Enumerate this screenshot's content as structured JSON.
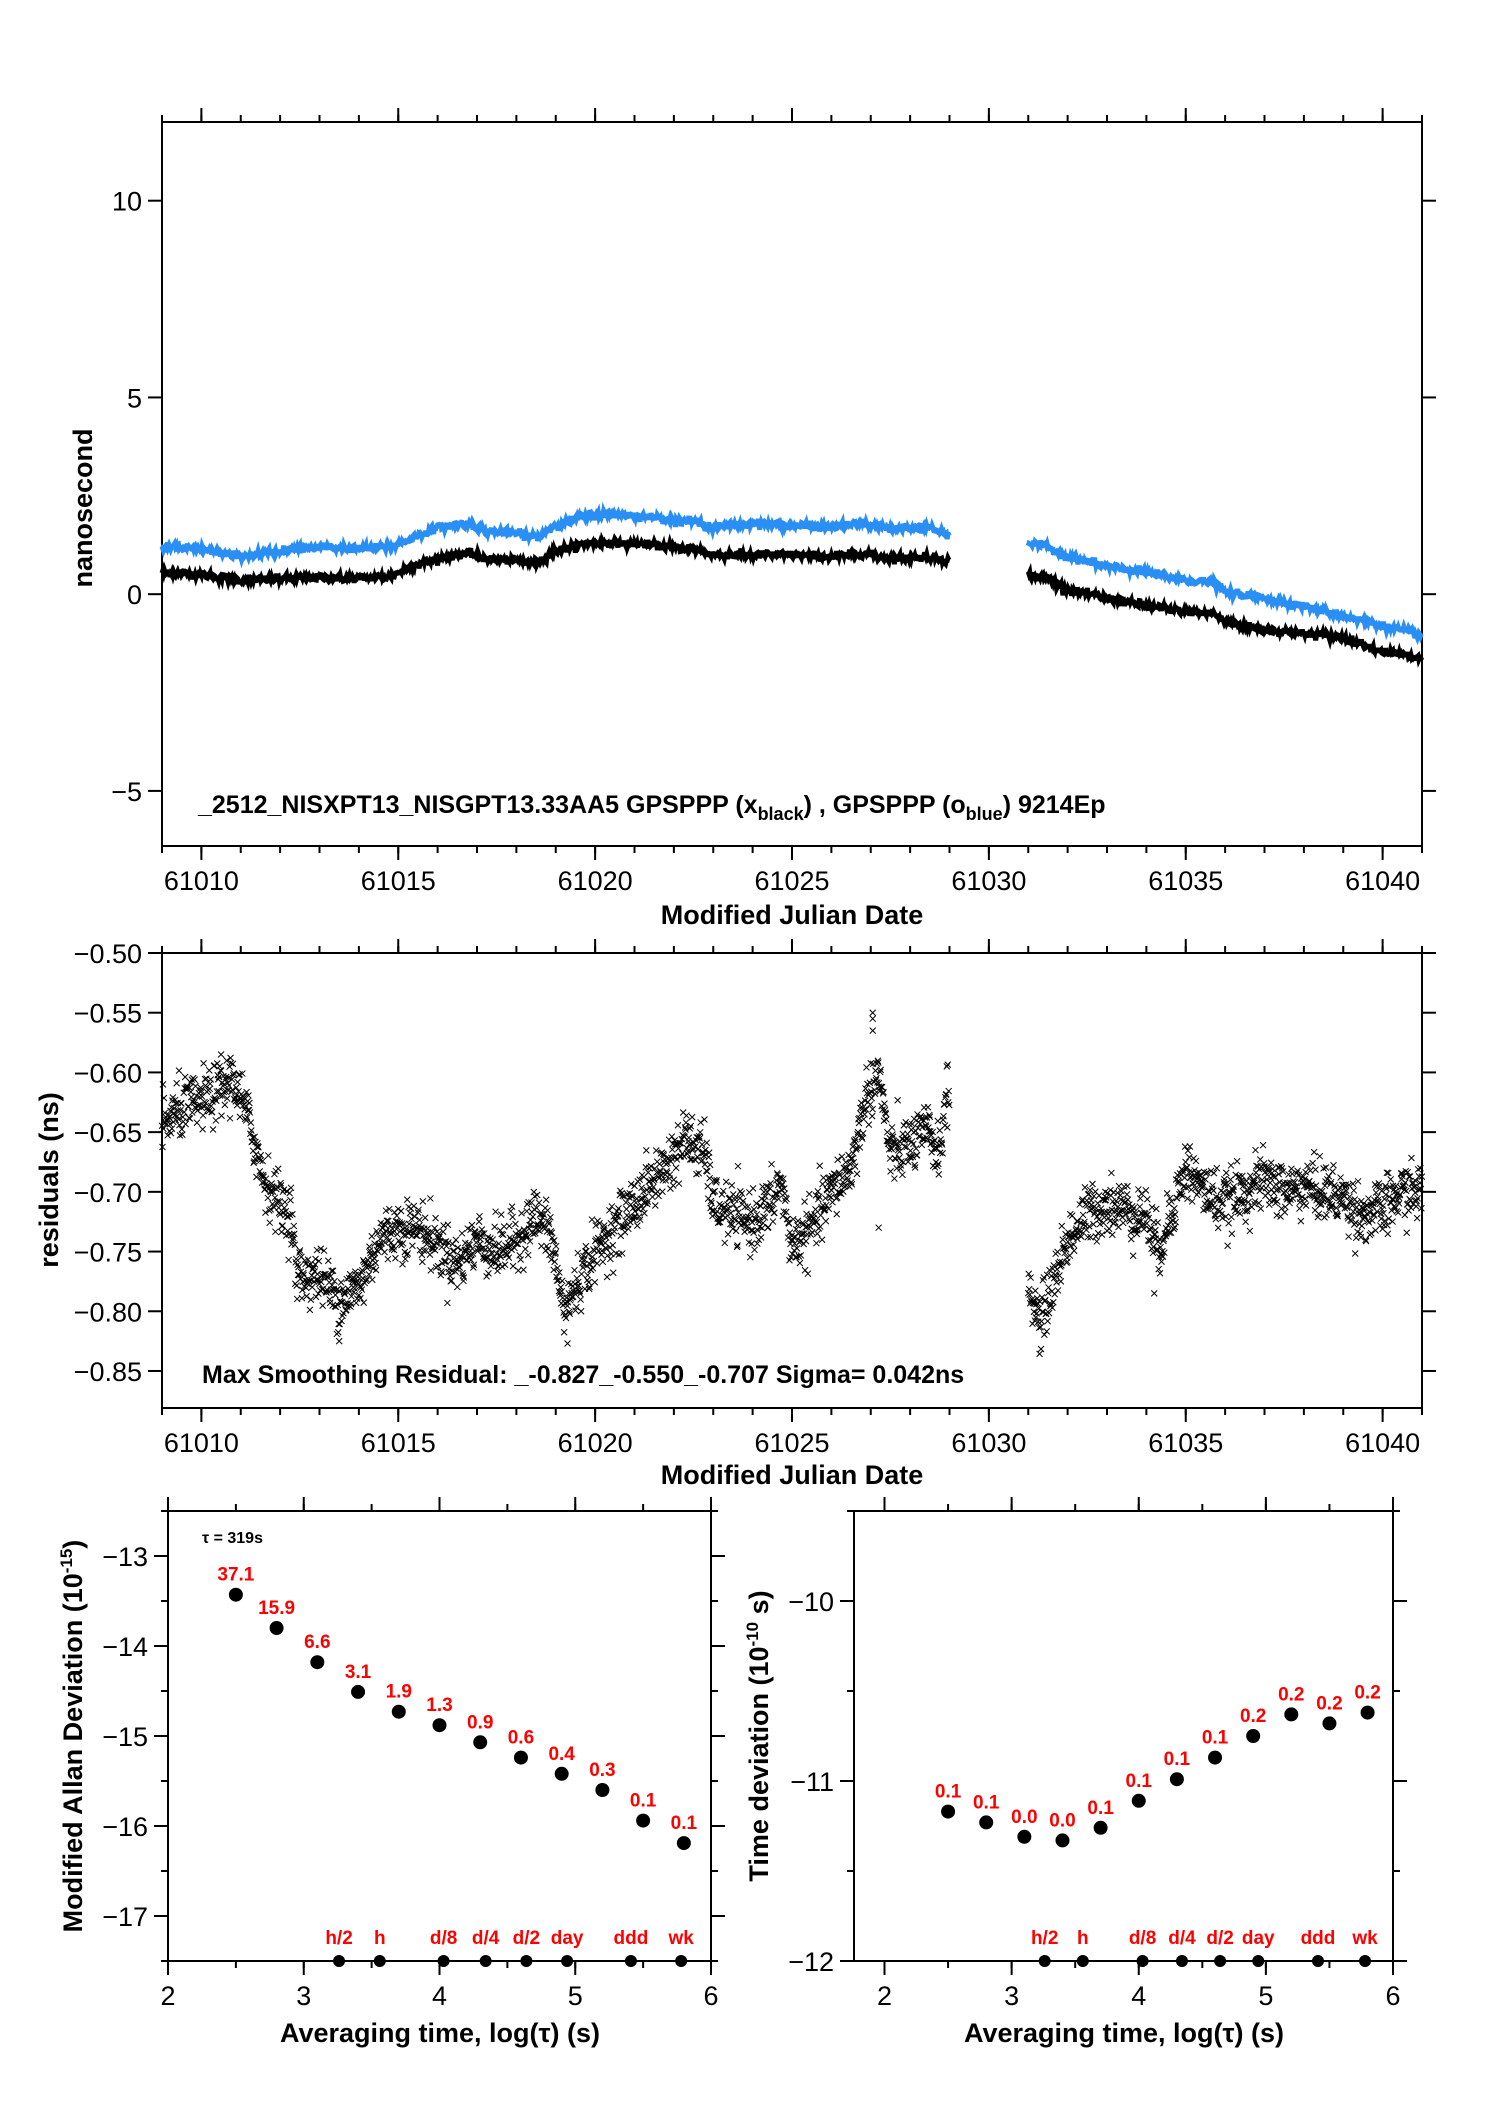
{
  "chart_data": [
    {
      "id": "time-series",
      "type": "line",
      "xlabel": "Modified Julian Date",
      "ylabel": "nanosecond",
      "xlim": [
        61009.0,
        61041.0
      ],
      "ylim": [
        -6.4,
        12.0
      ],
      "xticks": [
        61010,
        61015,
        61020,
        61025,
        61030,
        61035,
        61040
      ],
      "yticks": [
        -5,
        0,
        5,
        10
      ],
      "xtick_labels": [
        "61010",
        "61015",
        "61020",
        "61025",
        "61030",
        "61035",
        "61040"
      ],
      "ytick_labels": [
        "−5",
        "0",
        "5",
        "10"
      ],
      "annotation": {
        "prefix": "_2512_NISXPT13_NISGPT13.33AA5     GPSPPP (x",
        "sub1": "black",
        "mid": ") ,  GPSPPP (o",
        "sub2": "blue",
        "suffix": ")  9214Ep"
      },
      "series": [
        {
          "name": "GPSPPP (x black)",
          "color": "#000000",
          "segments": [
            [
              [
                61009.0,
                0.55
              ],
              [
                61010.0,
                0.5
              ],
              [
                61011.0,
                0.35
              ],
              [
                61012.0,
                0.4
              ],
              [
                61013.0,
                0.42
              ],
              [
                61014.0,
                0.4
              ],
              [
                61014.8,
                0.45
              ],
              [
                61015.3,
                0.7
              ],
              [
                61016.0,
                0.9
              ],
              [
                61016.8,
                1.05
              ],
              [
                61017.2,
                0.9
              ],
              [
                61018.0,
                0.85
              ],
              [
                61018.5,
                0.8
              ],
              [
                61019.0,
                1.1
              ],
              [
                61019.8,
                1.3
              ],
              [
                61020.5,
                1.3
              ],
              [
                61021.5,
                1.25
              ],
              [
                61022.5,
                1.15
              ],
              [
                61023.0,
                1.0
              ],
              [
                61024.0,
                1.0
              ],
              [
                61025.0,
                1.0
              ],
              [
                61026.0,
                0.95
              ],
              [
                61026.8,
                1.05
              ],
              [
                61027.5,
                0.9
              ],
              [
                61028.5,
                0.95
              ],
              [
                61029.0,
                0.85
              ]
            ],
            [
              [
                61031.0,
                0.5
              ],
              [
                61031.5,
                0.4
              ],
              [
                61032.0,
                0.1
              ],
              [
                61033.0,
                -0.1
              ],
              [
                61034.0,
                -0.3
              ],
              [
                61035.0,
                -0.45
              ],
              [
                61035.7,
                -0.5
              ],
              [
                61036.0,
                -0.7
              ],
              [
                61037.0,
                -0.9
              ],
              [
                61038.0,
                -1.0
              ],
              [
                61039.0,
                -1.1
              ],
              [
                61040.0,
                -1.45
              ],
              [
                61041.0,
                -1.65
              ]
            ]
          ]
        },
        {
          "name": "GPSPPP (o blue)",
          "color": "#2a8ff5",
          "segments": [
            [
              [
                61009.0,
                1.2
              ],
              [
                61010.0,
                1.15
              ],
              [
                61011.0,
                0.95
              ],
              [
                61012.0,
                1.1
              ],
              [
                61013.0,
                1.2
              ],
              [
                61014.0,
                1.15
              ],
              [
                61014.8,
                1.2
              ],
              [
                61015.3,
                1.4
              ],
              [
                61016.0,
                1.7
              ],
              [
                61016.8,
                1.8
              ],
              [
                61017.2,
                1.6
              ],
              [
                61018.0,
                1.55
              ],
              [
                61018.5,
                1.45
              ],
              [
                61019.0,
                1.75
              ],
              [
                61019.8,
                2.0
              ],
              [
                61020.5,
                2.05
              ],
              [
                61021.5,
                1.95
              ],
              [
                61022.5,
                1.85
              ],
              [
                61023.0,
                1.7
              ],
              [
                61024.0,
                1.8
              ],
              [
                61025.0,
                1.75
              ],
              [
                61026.0,
                1.7
              ],
              [
                61026.8,
                1.8
              ],
              [
                61027.5,
                1.65
              ],
              [
                61028.5,
                1.7
              ],
              [
                61029.0,
                1.5
              ]
            ],
            [
              [
                61031.0,
                1.3
              ],
              [
                61031.5,
                1.2
              ],
              [
                61032.0,
                0.95
              ],
              [
                61033.0,
                0.7
              ],
              [
                61034.0,
                0.55
              ],
              [
                61035.0,
                0.35
              ],
              [
                61035.7,
                0.3
              ],
              [
                61036.0,
                0.05
              ],
              [
                61037.0,
                -0.1
              ],
              [
                61038.0,
                -0.3
              ],
              [
                61039.0,
                -0.55
              ],
              [
                61040.0,
                -0.8
              ],
              [
                61041.0,
                -1.05
              ]
            ]
          ]
        }
      ]
    },
    {
      "id": "residuals",
      "type": "scatter",
      "xlabel": "Modified Julian Date",
      "ylabel": "residuals (ns)",
      "xlim": [
        61009.0,
        61041.0
      ],
      "ylim": [
        -0.881,
        -0.5
      ],
      "xticks": [
        61010,
        61015,
        61020,
        61025,
        61030,
        61035,
        61040
      ],
      "yticks": [
        -0.85,
        -0.8,
        -0.75,
        -0.7,
        -0.65,
        -0.6,
        -0.55,
        -0.5
      ],
      "xtick_labels": [
        "61010",
        "61015",
        "61020",
        "61025",
        "61030",
        "61035",
        "61040"
      ],
      "ytick_labels": [
        "−0.85",
        "−0.80",
        "−0.75",
        "−0.70",
        "−0.65",
        "−0.60",
        "−0.55",
        "−0.50"
      ],
      "annotation": "Max Smoothing Residual: _-0.827_-0.550_-0.707  Sigma= 0.042ns",
      "marker": "x",
      "color": "#000000",
      "trend_segments": [
        [
          [
            61009.0,
            -0.645
          ],
          [
            61009.5,
            -0.63
          ],
          [
            61010.0,
            -0.625
          ],
          [
            61010.5,
            -0.615
          ],
          [
            61010.8,
            -0.605
          ],
          [
            61011.2,
            -0.64
          ],
          [
            61011.6,
            -0.69
          ],
          [
            61012.0,
            -0.71
          ],
          [
            61012.3,
            -0.72
          ],
          [
            61012.4,
            -0.77
          ],
          [
            61013.0,
            -0.77
          ],
          [
            61013.5,
            -0.79
          ],
          [
            61014.0,
            -0.78
          ],
          [
            61014.5,
            -0.74
          ],
          [
            61015.0,
            -0.73
          ],
          [
            61015.5,
            -0.73
          ],
          [
            61016.0,
            -0.745
          ],
          [
            61016.5,
            -0.76
          ],
          [
            61017.0,
            -0.74
          ],
          [
            61017.5,
            -0.75
          ],
          [
            61018.0,
            -0.74
          ],
          [
            61018.5,
            -0.72
          ],
          [
            61018.9,
            -0.74
          ],
          [
            61019.2,
            -0.8
          ],
          [
            61019.5,
            -0.78
          ],
          [
            61020.0,
            -0.75
          ],
          [
            61020.5,
            -0.73
          ],
          [
            61021.0,
            -0.71
          ],
          [
            61021.5,
            -0.69
          ],
          [
            61022.0,
            -0.67
          ],
          [
            61022.3,
            -0.655
          ],
          [
            61022.8,
            -0.67
          ],
          [
            61023.0,
            -0.71
          ],
          [
            61023.5,
            -0.72
          ],
          [
            61024.0,
            -0.725
          ],
          [
            61024.5,
            -0.71
          ],
          [
            61024.7,
            -0.69
          ],
          [
            61025.0,
            -0.745
          ],
          [
            61025.5,
            -0.73
          ],
          [
            61026.0,
            -0.7
          ],
          [
            61026.5,
            -0.68
          ],
          [
            61026.9,
            -0.62
          ],
          [
            61027.2,
            -0.6
          ],
          [
            61027.5,
            -0.67
          ],
          [
            61028.0,
            -0.66
          ],
          [
            61028.5,
            -0.65
          ],
          [
            61028.7,
            -0.67
          ],
          [
            61029.0,
            -0.61
          ]
        ],
        [
          [
            61031.0,
            -0.78
          ],
          [
            61031.3,
            -0.81
          ],
          [
            61031.6,
            -0.78
          ],
          [
            61032.0,
            -0.74
          ],
          [
            61032.5,
            -0.72
          ],
          [
            61033.0,
            -0.71
          ],
          [
            61033.5,
            -0.715
          ],
          [
            61034.0,
            -0.72
          ],
          [
            61034.3,
            -0.75
          ],
          [
            61034.6,
            -0.72
          ],
          [
            61035.0,
            -0.68
          ],
          [
            61035.5,
            -0.7
          ],
          [
            61036.0,
            -0.71
          ],
          [
            61036.5,
            -0.7
          ],
          [
            61037.0,
            -0.69
          ],
          [
            61037.5,
            -0.7
          ],
          [
            61038.0,
            -0.695
          ],
          [
            61038.5,
            -0.7
          ],
          [
            61039.0,
            -0.705
          ],
          [
            61039.5,
            -0.72
          ],
          [
            61040.0,
            -0.715
          ],
          [
            61040.5,
            -0.7
          ],
          [
            61041.0,
            -0.7
          ]
        ]
      ],
      "outliers": [
        [
          61027.05,
          -0.55
        ],
        [
          61027.05,
          -0.555
        ],
        [
          61027.05,
          -0.565
        ],
        [
          61013.5,
          -0.825
        ],
        [
          61019.3,
          -0.827
        ],
        [
          61034.2,
          -0.785
        ],
        [
          61027.2,
          -0.73
        ],
        [
          61010.5,
          -0.585
        ]
      ]
    },
    {
      "id": "mod-allan",
      "type": "scatter",
      "xlabel": "Averaging time, log(τ) (s)",
      "ylabel_prefix": "Modified Allan Deviation (10",
      "ylabel_exp": "-15",
      "ylabel_suffix": ")",
      "xlim": [
        2.0,
        6.0
      ],
      "ylim": [
        -17.5,
        -12.5
      ],
      "xticks": [
        2,
        3,
        4,
        5,
        6
      ],
      "xtick_labels": [
        "2",
        "3",
        "4",
        "5",
        "6"
      ],
      "yticks": [
        -17,
        -16,
        -15,
        -14,
        -13
      ],
      "ytick_labels": [
        "−17",
        "−16",
        "−15",
        "−14",
        "−13"
      ],
      "tau_annotation": "τ = 319s",
      "x": [
        2.5,
        2.8,
        3.1,
        3.4,
        3.7,
        4.0,
        4.3,
        4.6,
        4.9,
        5.2,
        5.5,
        5.8
      ],
      "y": [
        -13.43,
        -13.8,
        -14.18,
        -14.51,
        -14.73,
        -14.88,
        -15.07,
        -15.24,
        -15.42,
        -15.6,
        -15.94,
        -16.19
      ],
      "point_labels": [
        "37.1",
        "15.9",
        "6.6",
        "3.1",
        "1.9",
        "1.3",
        "0.9",
        "0.6",
        "0.4",
        "0.3",
        "0.1",
        "0.1"
      ],
      "reference_marks": [
        {
          "label": "h/2",
          "x": 3.26
        },
        {
          "label": "h",
          "x": 3.56
        },
        {
          "label": "d/8",
          "x": 4.03
        },
        {
          "label": "d/4",
          "x": 4.34
        },
        {
          "label": "d/2",
          "x": 4.64
        },
        {
          "label": "day",
          "x": 4.94
        },
        {
          "label": "ddd",
          "x": 5.41
        },
        {
          "label": "wk",
          "x": 5.78
        }
      ]
    },
    {
      "id": "time-deviation",
      "type": "scatter",
      "xlabel": "Averaging time, log(τ) (s)",
      "ylabel_prefix": "Time deviation (10",
      "ylabel_exp": "-10",
      "ylabel_suffix": " s)",
      "xlim": [
        1.76,
        6.0
      ],
      "ylim": [
        -12.0,
        -9.5
      ],
      "xticks": [
        2,
        3,
        4,
        5,
        6
      ],
      "xtick_labels": [
        "2",
        "3",
        "4",
        "5",
        "6"
      ],
      "yticks": [
        -12,
        -11,
        -10
      ],
      "ytick_labels": [
        "−12",
        "−11",
        "−10"
      ],
      "x": [
        2.5,
        2.8,
        3.1,
        3.4,
        3.7,
        4.0,
        4.3,
        4.6,
        4.9,
        5.2,
        5.5,
        5.8
      ],
      "y": [
        -11.17,
        -11.23,
        -11.31,
        -11.33,
        -11.26,
        -11.11,
        -10.99,
        -10.87,
        -10.75,
        -10.63,
        -10.68,
        -10.62
      ],
      "point_labels": [
        "0.1",
        "0.1",
        "0.0",
        "0.0",
        "0.1",
        "0.1",
        "0.1",
        "0.1",
        "0.2",
        "0.2",
        "0.2",
        "0.2"
      ],
      "reference_marks": [
        {
          "label": "h/2",
          "x": 3.26
        },
        {
          "label": "h",
          "x": 3.56
        },
        {
          "label": "d/8",
          "x": 4.03
        },
        {
          "label": "d/4",
          "x": 4.34
        },
        {
          "label": "d/2",
          "x": 4.64
        },
        {
          "label": "day",
          "x": 4.94
        },
        {
          "label": "ddd",
          "x": 5.41
        },
        {
          "label": "wk",
          "x": 5.78
        }
      ]
    }
  ],
  "colors": {
    "label_red": "#ff0000",
    "series_blue": "#2a8ff5",
    "axis": "#000000"
  }
}
